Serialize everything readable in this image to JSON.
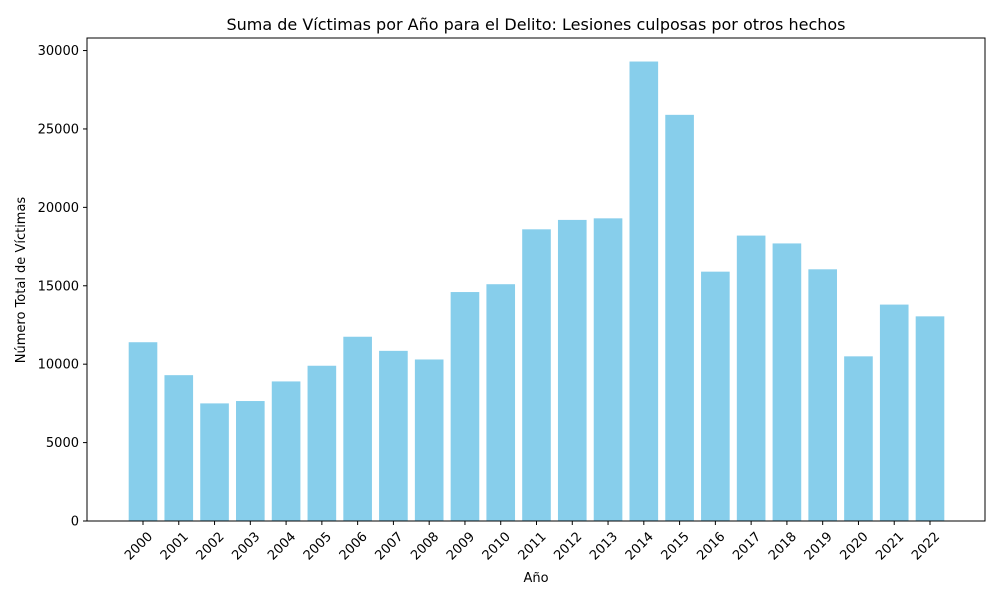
{
  "chart_data": {
    "type": "bar",
    "title": "Suma de Víctimas por Año para el Delito: Lesiones culposas por otros hechos",
    "xlabel": "Año",
    "ylabel": "Número Total de Víctimas",
    "categories": [
      "2000",
      "2001",
      "2002",
      "2003",
      "2004",
      "2005",
      "2006",
      "2007",
      "2008",
      "2009",
      "2010",
      "2011",
      "2012",
      "2013",
      "2014",
      "2015",
      "2016",
      "2017",
      "2018",
      "2019",
      "2020",
      "2021",
      "2022"
    ],
    "values": [
      11400,
      9300,
      7500,
      7650,
      8900,
      9900,
      11750,
      10850,
      10300,
      14600,
      15100,
      18600,
      19200,
      19300,
      29300,
      25900,
      15900,
      18200,
      17700,
      16050,
      10500,
      13800,
      13050
    ],
    "yticks": [
      0,
      5000,
      10000,
      15000,
      20000,
      25000,
      30000
    ],
    "ylim": [
      0,
      30800
    ],
    "bar_color": "#87CEEB",
    "grid": false,
    "legend": "none"
  }
}
